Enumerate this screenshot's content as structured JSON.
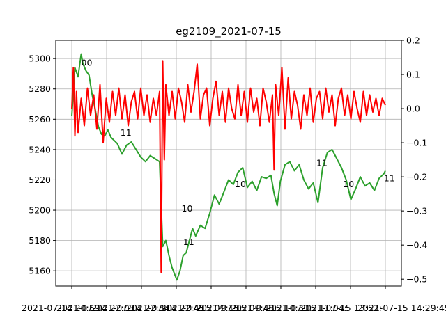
{
  "chart_data": {
    "type": "line",
    "title": "eg2109_2021-07-15",
    "xlabel": "",
    "ylabel": "",
    "grid": true,
    "x_tick_labels": [
      "2021-07-14 20:59:",
      "2021-07-14 22:03:",
      "2021-07-14 22:34:",
      "2021-07-14 22:45:",
      "2021-07-15 09:15:",
      "2021-07-15 09:48:",
      "2021-07-15 10:31:",
      "2021-07-15 11:04:",
      "2021-07-15 13:52:",
      "2021-07-15 14:29:45."
    ],
    "y_left": {
      "range": [
        5150,
        5312
      ],
      "ticks": [
        5160,
        5180,
        5200,
        5220,
        5240,
        5260,
        5280,
        5300
      ],
      "color": "#2ca02c"
    },
    "y_right": {
      "range": [
        -0.52,
        0.2
      ],
      "ticks": [
        -0.5,
        -0.4,
        -0.3,
        -0.2,
        -0.1,
        0.0,
        0.1,
        0.2
      ],
      "tick_labels": [
        "−0.5",
        "−0.4",
        "−0.3",
        "−0.2",
        "−0.1",
        "0.0",
        "0.1",
        "0.2"
      ],
      "color": "#ff0000"
    },
    "x_range": [
      0,
      1
    ],
    "series": [
      {
        "axis": "left",
        "color": "#2ca02c",
        "x": [
          0.0,
          0.01,
          0.02,
          0.03,
          0.035,
          0.045,
          0.055,
          0.065,
          0.075,
          0.085,
          0.095,
          0.105,
          0.115,
          0.125,
          0.135,
          0.145,
          0.16,
          0.175,
          0.19,
          0.205,
          0.22,
          0.235,
          0.25,
          0.265,
          0.28,
          0.29,
          0.3,
          0.31,
          0.32,
          0.335,
          0.345,
          0.355,
          0.365,
          0.375,
          0.385,
          0.395,
          0.41,
          0.425,
          0.44,
          0.455,
          0.47,
          0.485,
          0.5,
          0.515,
          0.53,
          0.545,
          0.56,
          0.575,
          0.59,
          0.605,
          0.62,
          0.635,
          0.645,
          0.655,
          0.665,
          0.68,
          0.695,
          0.71,
          0.725,
          0.74,
          0.755,
          0.77,
          0.785,
          0.8,
          0.815,
          0.83,
          0.845,
          0.86,
          0.875,
          0.89,
          0.905,
          0.92,
          0.935,
          0.95,
          0.965,
          0.98,
          0.995,
          1.0
        ],
        "y": [
          5262,
          5294,
          5288,
          5303,
          5297,
          5292,
          5289,
          5276,
          5266,
          5255,
          5250,
          5249,
          5253,
          5248,
          5246,
          5244,
          5237,
          5243,
          5245,
          5240,
          5235,
          5232,
          5236,
          5234,
          5232,
          5176,
          5180,
          5170,
          5162,
          5154,
          5160,
          5170,
          5172,
          5180,
          5188,
          5183,
          5190,
          5188,
          5198,
          5210,
          5204,
          5212,
          5220,
          5217,
          5225,
          5228,
          5215,
          5219,
          5213,
          5222,
          5221,
          5223,
          5211,
          5203,
          5219,
          5230,
          5232,
          5226,
          5230,
          5220,
          5214,
          5218,
          5205,
          5228,
          5238,
          5240,
          5234,
          5228,
          5220,
          5207,
          5214,
          5222,
          5216,
          5218,
          5213,
          5221,
          5224,
          5226
        ]
      },
      {
        "axis": "right",
        "color": "#ff0000",
        "x": [
          0.0,
          0.005,
          0.01,
          0.015,
          0.02,
          0.03,
          0.04,
          0.05,
          0.06,
          0.07,
          0.08,
          0.09,
          0.1,
          0.11,
          0.12,
          0.13,
          0.14,
          0.15,
          0.16,
          0.17,
          0.18,
          0.19,
          0.2,
          0.21,
          0.22,
          0.23,
          0.24,
          0.25,
          0.26,
          0.27,
          0.28,
          0.285,
          0.29,
          0.295,
          0.3,
          0.31,
          0.32,
          0.33,
          0.34,
          0.35,
          0.36,
          0.37,
          0.38,
          0.39,
          0.4,
          0.41,
          0.42,
          0.43,
          0.44,
          0.45,
          0.46,
          0.47,
          0.48,
          0.49,
          0.5,
          0.51,
          0.52,
          0.53,
          0.54,
          0.55,
          0.56,
          0.57,
          0.58,
          0.59,
          0.6,
          0.61,
          0.62,
          0.63,
          0.64,
          0.645,
          0.65,
          0.66,
          0.67,
          0.68,
          0.69,
          0.7,
          0.71,
          0.72,
          0.73,
          0.74,
          0.75,
          0.76,
          0.77,
          0.78,
          0.79,
          0.8,
          0.81,
          0.82,
          0.83,
          0.84,
          0.85,
          0.86,
          0.87,
          0.88,
          0.89,
          0.9,
          0.91,
          0.92,
          0.93,
          0.94,
          0.95,
          0.96,
          0.97,
          0.98,
          0.99,
          1.0
        ],
        "y": [
          0.0,
          0.12,
          -0.08,
          0.05,
          -0.07,
          0.03,
          -0.05,
          0.06,
          -0.02,
          0.04,
          -0.06,
          0.07,
          -0.1,
          0.03,
          -0.04,
          0.05,
          -0.02,
          0.06,
          -0.03,
          0.04,
          -0.05,
          0.02,
          0.05,
          -0.03,
          0.06,
          -0.02,
          0.04,
          -0.04,
          0.03,
          -0.02,
          0.05,
          -0.48,
          0.14,
          -0.15,
          0.07,
          -0.02,
          0.05,
          -0.03,
          0.06,
          0.02,
          -0.04,
          0.07,
          -0.01,
          0.05,
          0.13,
          -0.03,
          0.04,
          0.06,
          -0.05,
          0.03,
          0.08,
          -0.02,
          0.05,
          -0.04,
          0.06,
          0.0,
          -0.03,
          0.07,
          -0.02,
          0.05,
          -0.04,
          0.06,
          -0.01,
          0.03,
          -0.05,
          0.06,
          0.02,
          -0.04,
          0.04,
          -0.18,
          0.07,
          -0.02,
          0.12,
          -0.06,
          0.09,
          -0.03,
          0.05,
          0.01,
          -0.06,
          0.04,
          -0.02,
          0.06,
          -0.04,
          0.03,
          0.05,
          -0.03,
          0.06,
          -0.01,
          0.04,
          -0.05,
          0.03,
          0.06,
          -0.02,
          0.04,
          -0.03,
          0.05,
          0.0,
          -0.04,
          0.05,
          -0.02,
          0.04,
          -0.01,
          0.03,
          -0.02,
          0.03,
          0.01
        ]
      }
    ],
    "annotations": [
      {
        "text": "00",
        "x": 0.03,
        "y": 5297
      },
      {
        "text": "11",
        "x": 0.155,
        "y": 5251
      },
      {
        "text": "10",
        "x": 0.35,
        "y": 5201
      },
      {
        "text": "11",
        "x": 0.355,
        "y": 5179
      },
      {
        "text": "10",
        "x": 0.52,
        "y": 5217
      },
      {
        "text": "11",
        "x": 0.78,
        "y": 5231
      },
      {
        "text": "10",
        "x": 0.865,
        "y": 5217
      },
      {
        "text": "11",
        "x": 0.995,
        "y": 5221
      }
    ]
  }
}
